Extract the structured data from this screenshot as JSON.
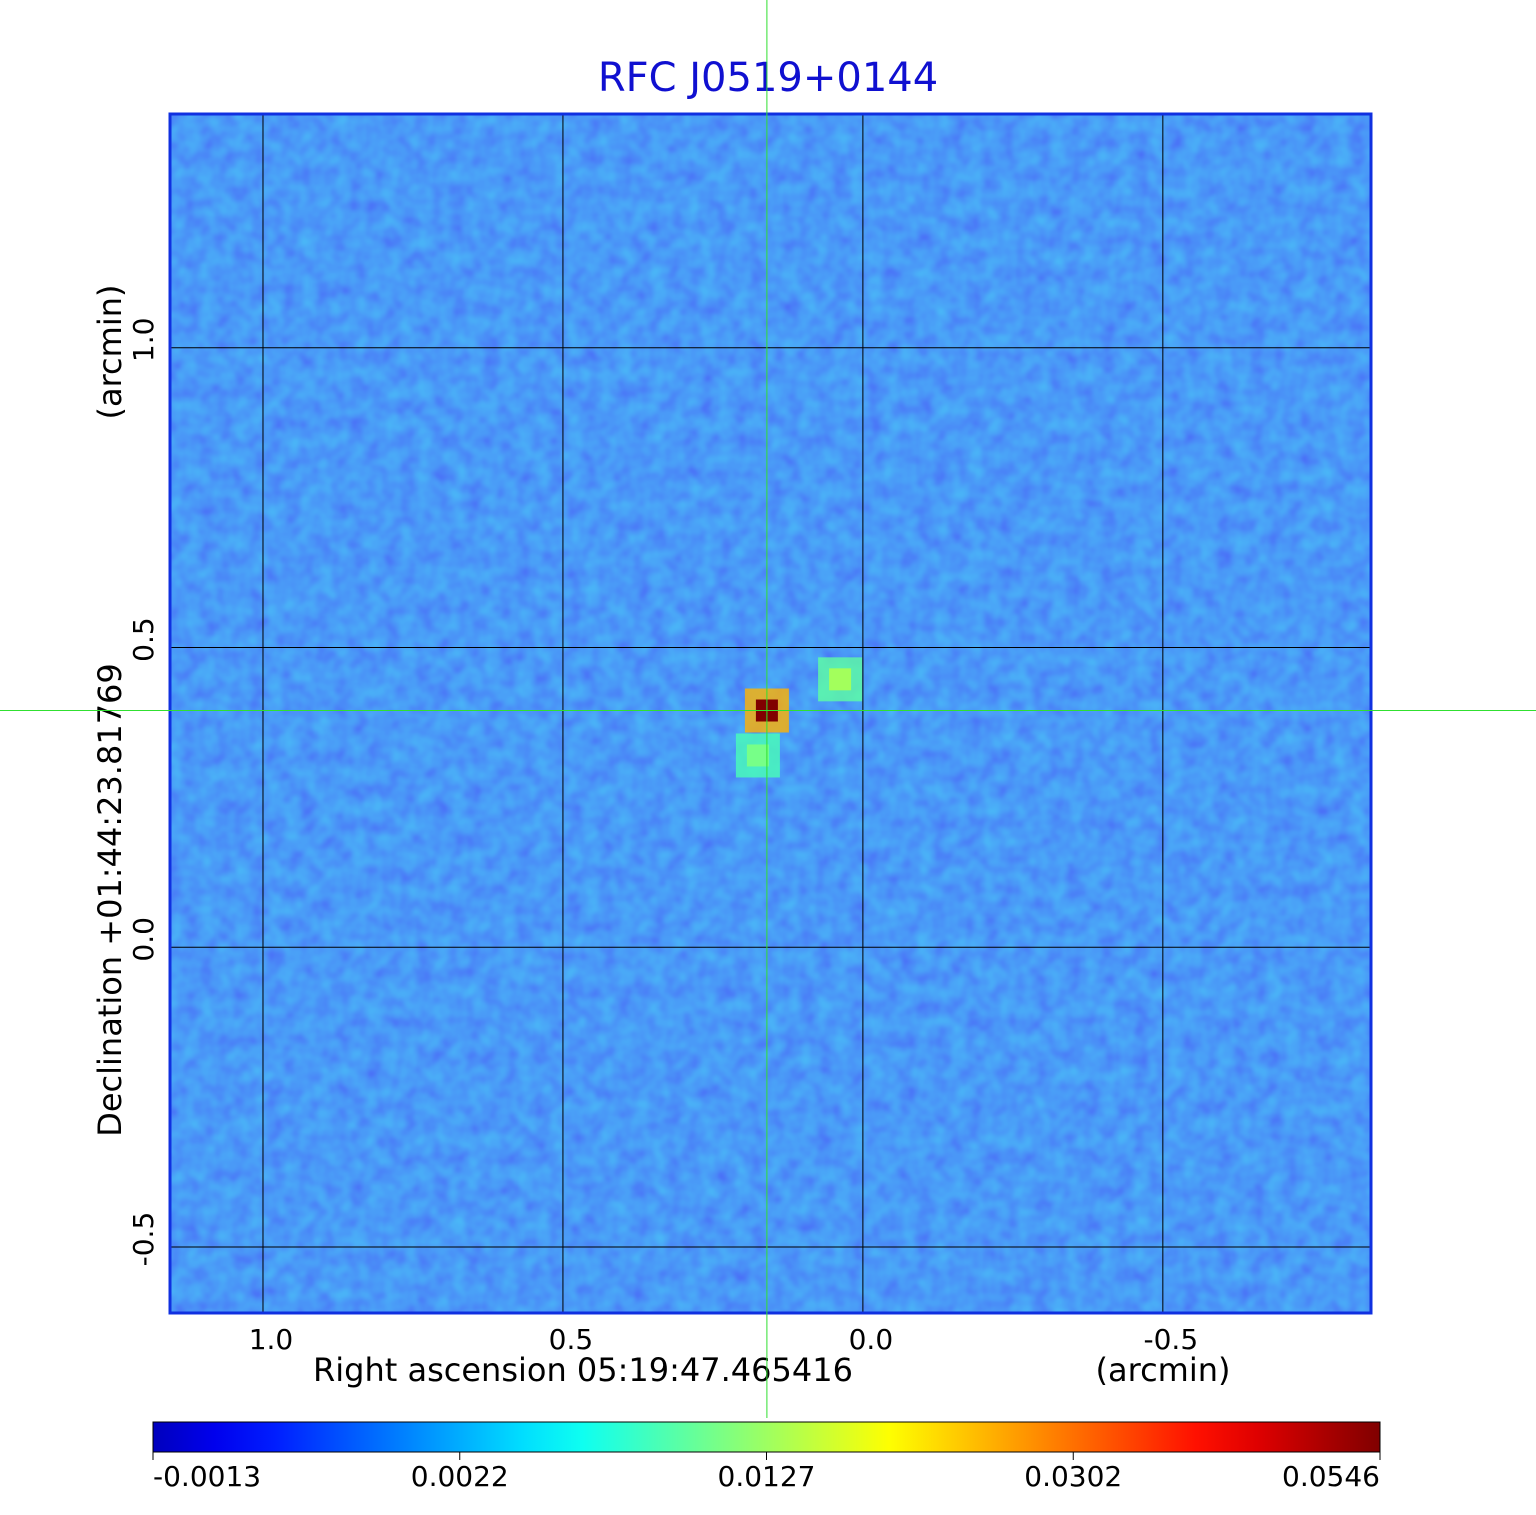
{
  "chart_data": {
    "type": "image",
    "title": "RFC J0519+0144",
    "xlabel": "Right ascension  05:19:47.465416",
    "xunit": "(arcmin)",
    "ylabel": "Declination  +01:44:23.81769",
    "yunit": "(arcmin)",
    "xlim": [
      1.155,
      -0.847
    ],
    "ylim": [
      -0.61,
      1.39
    ],
    "xticks": [
      {
        "value": 1,
        "label": "1.0"
      },
      0.5,
      {
        "value": 0,
        "label": "0.0"
      },
      -0.5
    ],
    "yticks": [
      -0.5,
      {
        "value": 0,
        "label": "0.0"
      },
      0.5,
      {
        "value": 1,
        "label": "1.0"
      }
    ],
    "grid": true,
    "colormap": "jet",
    "crosshair": {
      "x": 0.16,
      "y": 0.395
    },
    "peaks": {
      "x": [
        0.16,
        0.038,
        0.175
      ],
      "y": [
        0.395,
        0.447,
        0.32
      ],
      "values": [
        0.0546,
        0.012,
        0.01
      ]
    },
    "colorbar_ticks": [
      -0.0013,
      0.0022,
      0.0127,
      0.0302,
      0.0546
    ]
  }
}
